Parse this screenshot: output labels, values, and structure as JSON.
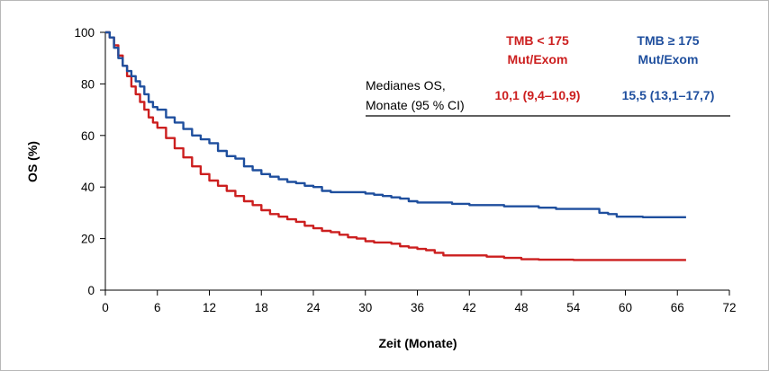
{
  "chart_data": {
    "type": "line",
    "step": true,
    "xlabel": "Zeit (Monate)",
    "ylabel": "OS (%)",
    "xlim": [
      0,
      72
    ],
    "ylim": [
      0,
      100
    ],
    "xticks": [
      "0",
      "6",
      "12",
      "18",
      "24",
      "30",
      "36",
      "42",
      "48",
      "54",
      "60",
      "66",
      "72"
    ],
    "yticks": [
      "0",
      "20",
      "40",
      "60",
      "80",
      "100"
    ],
    "grid": false,
    "legend": {
      "row_label_line1": "Medianes OS,",
      "row_label_line2": "Monate (95 % CI)"
    },
    "series": [
      {
        "name_line1": "TMB < 175",
        "name_line2": "Mut/Exom",
        "median_os": "10,1 (9,4–10,9)",
        "color": "#cc1f1f",
        "x": [
          0,
          0.5,
          1,
          1.5,
          2,
          2.5,
          3,
          3.5,
          4,
          4.5,
          5,
          5.5,
          6,
          7,
          8,
          9,
          10,
          11,
          12,
          13,
          14,
          15,
          16,
          17,
          18,
          19,
          20,
          21,
          22,
          23,
          24,
          25,
          26,
          27,
          28,
          29,
          30,
          31,
          32,
          33,
          34,
          35,
          36,
          37,
          38,
          39,
          40,
          42,
          44,
          46,
          48,
          50,
          54,
          58,
          62,
          66,
          67
        ],
        "y": [
          100,
          98,
          95,
          91,
          87,
          83,
          79,
          76,
          73,
          70,
          67,
          65,
          63,
          59,
          55,
          51.5,
          48,
          45,
          42.5,
          40.5,
          38.5,
          36.5,
          34.5,
          33,
          31,
          29.5,
          28.5,
          27.5,
          26.5,
          25,
          24,
          23,
          22.5,
          21.5,
          20.5,
          20,
          19,
          18.5,
          18.5,
          18,
          17,
          16.5,
          16,
          15.5,
          14.5,
          13.5,
          13.5,
          13.5,
          13,
          12.5,
          12,
          11.8,
          11.7,
          11.7,
          11.7,
          11.7,
          11.7
        ]
      },
      {
        "name_line1": "TMB ≥ 175",
        "name_line2": "Mut/Exom",
        "median_os": "15,5 (13,1–17,7)",
        "color": "#1f4f9e",
        "x": [
          0,
          0.5,
          1,
          1.5,
          2,
          2.5,
          3,
          3.5,
          4,
          4.5,
          5,
          5.5,
          6,
          7,
          8,
          9,
          10,
          11,
          12,
          13,
          14,
          15,
          16,
          17,
          18,
          19,
          20,
          21,
          22,
          23,
          24,
          25,
          26,
          27,
          28,
          29,
          30,
          31,
          32,
          33,
          34,
          35,
          36,
          38,
          40,
          42,
          44,
          46,
          48,
          50,
          52,
          54,
          56,
          57,
          58,
          59,
          60,
          62,
          64,
          66,
          67
        ],
        "y": [
          100,
          98,
          94,
          90,
          87,
          85,
          83,
          81,
          79,
          76,
          73,
          71,
          70,
          67,
          65,
          62.5,
          60,
          58.5,
          57,
          54,
          52,
          51,
          48,
          46.5,
          45,
          44,
          43,
          42,
          41.5,
          40.5,
          40,
          38.5,
          38,
          38,
          38,
          38,
          37.5,
          37,
          36.5,
          36,
          35.5,
          34.5,
          34,
          34,
          33.5,
          33,
          33,
          32.5,
          32.5,
          32,
          31.5,
          31.5,
          31.5,
          30,
          29.5,
          28.5,
          28.5,
          28.3,
          28.3,
          28.3,
          28.3
        ]
      }
    ]
  }
}
